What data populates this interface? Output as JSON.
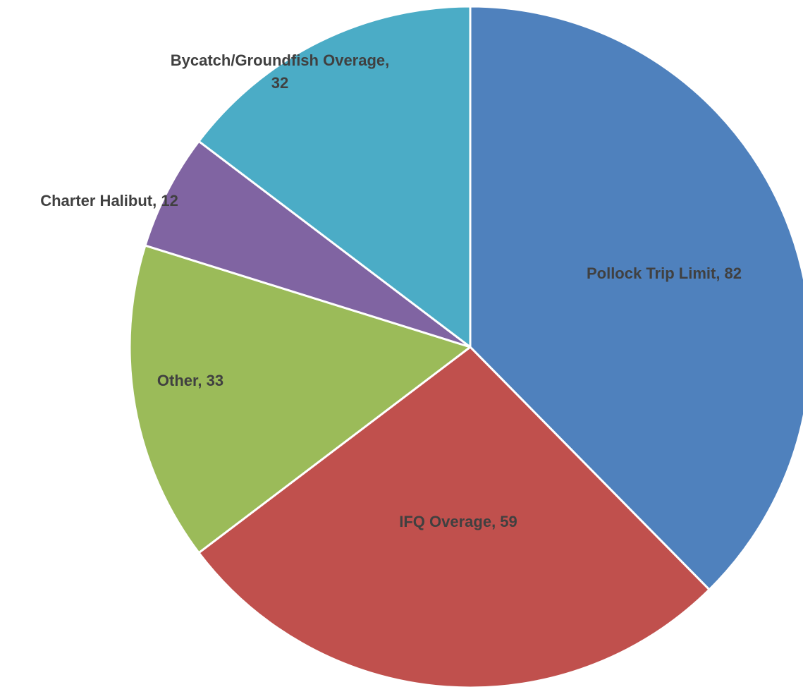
{
  "chart_data": {
    "type": "pie",
    "value_labels": [
      "Pollock Trip Limit, 82",
      "IFQ Overage, 59",
      "Other, 33",
      "Charter Halibut, 12",
      "Bycatch/Groundfish Overage, 32"
    ],
    "values": [
      82,
      59,
      33,
      12,
      32
    ],
    "colors": [
      "#4f81bd",
      "#c0504d",
      "#9bbb59",
      "#8064a2",
      "#4bacc6"
    ]
  }
}
